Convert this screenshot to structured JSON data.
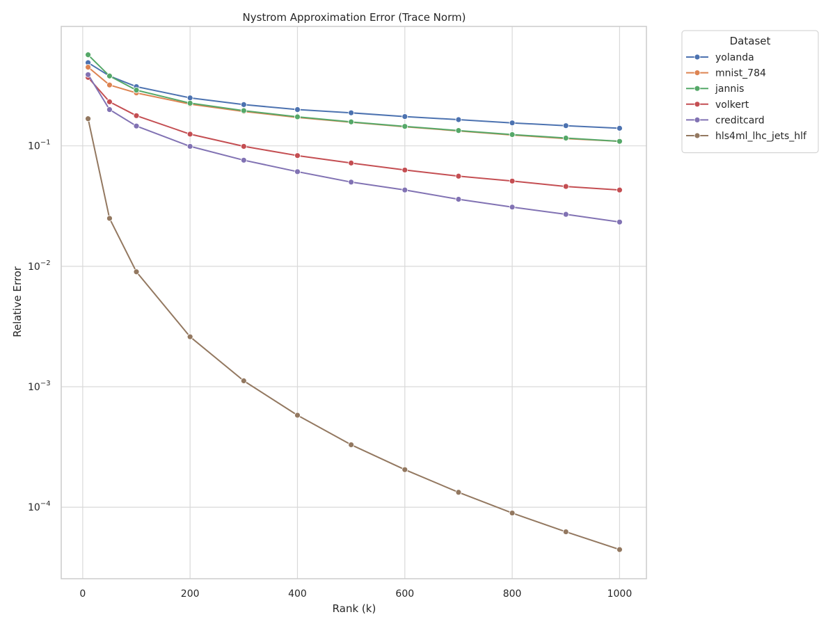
{
  "chart_data": {
    "type": "line",
    "title": "Nystrom Approximation Error (Trace Norm)",
    "xlabel": "Rank (k)",
    "ylabel": "Relative Error",
    "yscale": "log",
    "xlim": [
      -40,
      1050
    ],
    "ylim": [
      2.55e-05,
      0.98
    ],
    "x_ticks": [
      0,
      200,
      400,
      600,
      800,
      1000
    ],
    "x_tick_labels": [
      "0",
      "200",
      "400",
      "600",
      "800",
      "1000"
    ],
    "y_ticks": [
      0.1,
      0.01,
      0.001,
      0.0001
    ],
    "y_tick_labels": [
      {
        "base": "10",
        "exp": "−1"
      },
      {
        "base": "10",
        "exp": "−2"
      },
      {
        "base": "10",
        "exp": "−3"
      },
      {
        "base": "10",
        "exp": "−4"
      }
    ],
    "grid": true,
    "legend": {
      "title": "Dataset",
      "position": "outside-top-right"
    },
    "x": [
      10,
      50,
      100,
      200,
      300,
      400,
      500,
      600,
      700,
      800,
      900,
      1000
    ],
    "series": [
      {
        "name": "yolanda",
        "color": "#4c72b0",
        "values": [
          0.49,
          0.38,
          0.31,
          0.25,
          0.22,
          0.2,
          0.188,
          0.175,
          0.165,
          0.155,
          0.147,
          0.14
        ]
      },
      {
        "name": "mnist_784",
        "color": "#dd8452",
        "values": [
          0.45,
          0.32,
          0.275,
          0.222,
          0.193,
          0.172,
          0.157,
          0.144,
          0.133,
          0.123,
          0.115,
          0.109
        ]
      },
      {
        "name": "jannis",
        "color": "#55a868",
        "values": [
          0.57,
          0.38,
          0.29,
          0.226,
          0.196,
          0.174,
          0.158,
          0.145,
          0.134,
          0.124,
          0.116,
          0.109
        ]
      },
      {
        "name": "volkert",
        "color": "#c44e52",
        "values": [
          0.37,
          0.232,
          0.178,
          0.125,
          0.099,
          0.083,
          0.072,
          0.063,
          0.056,
          0.051,
          0.046,
          0.043
        ]
      },
      {
        "name": "creditcard",
        "color": "#8172b3",
        "values": [
          0.39,
          0.2,
          0.146,
          0.099,
          0.076,
          0.061,
          0.05,
          0.043,
          0.036,
          0.031,
          0.027,
          0.0233
        ]
      },
      {
        "name": "hls4ml_lhc_jets_hlf",
        "color": "#937860",
        "values": [
          0.168,
          0.025,
          0.009,
          0.0026,
          0.00112,
          0.00058,
          0.00033,
          0.000205,
          0.000133,
          8.95e-05,
          6.25e-05,
          4.45e-05
        ]
      }
    ]
  }
}
